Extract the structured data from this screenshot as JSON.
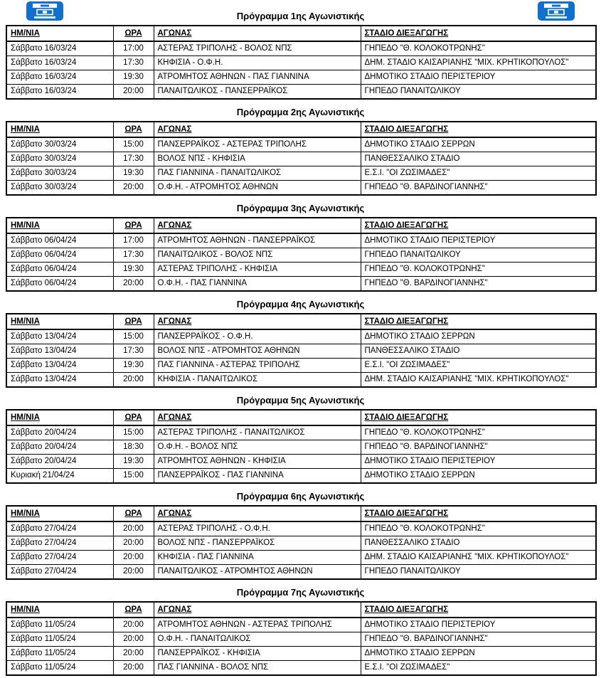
{
  "icons": {
    "logo": "league-logo"
  },
  "colors": {
    "logo_blue": "#1170c9",
    "border": "#000000",
    "text": "#000000",
    "background": "#ffffff"
  },
  "columns": [
    "ΗΜ/ΝΙΑ",
    "ΩΡΑ",
    "ΑΓΩΝΑΣ",
    "ΣΤΑΔΙΟ ΔΙΕΞΑΓΩΓΗΣ"
  ],
  "matchdays": [
    {
      "title": "Πρόγραμμα 1ης Αγωνιστικής",
      "rows": [
        [
          "Σάββατο 16/03/24",
          "17:00",
          "ΑΣΤΕΡΑΣ ΤΡΙΠΟΛΗΣ - ΒΟΛΟΣ ΝΠΣ",
          "ΓΗΠΕΔΟ \"Θ. ΚΟΛΟΚΟΤΡΩΝΗΣ\""
        ],
        [
          "Σάββατο 16/03/24",
          "17:30",
          "ΚΗΦΙΣΙΑ - Ο.Φ.Η.",
          "ΔΗΜ. ΣΤΑΔΙΟ ΚΑΙΣΑΡΙΑΝΗΣ \"ΜΙΧ. ΚΡΗΤΙΚΟΠΟΥΛΟΣ\""
        ],
        [
          "Σάββατο 16/03/24",
          "19:30",
          "ΑΤΡΟΜΗΤΟΣ ΑΘΗΝΩΝ - ΠΑΣ ΓΙΑΝΝΙΝΑ",
          "ΔΗΜΟΤΙΚΟ ΣΤΑΔΙΟ ΠΕΡΙΣΤΕΡΙΟΥ"
        ],
        [
          "Σάββατο 16/03/24",
          "20:00",
          "ΠΑΝΑΙΤΩΛΙΚΟΣ - ΠΑΝΣΕΡΡΑΪΚΟΣ",
          "ΓΗΠΕΔΟ ΠΑΝΑΙΤΩΛΙΚΟΥ"
        ]
      ]
    },
    {
      "title": "Πρόγραμμα 2ης Αγωνιστικής",
      "rows": [
        [
          "Σάββατο 30/03/24",
          "15:00",
          "ΠΑΝΣΕΡΡΑΪΚΟΣ - ΑΣΤΕΡΑΣ ΤΡΙΠΟΛΗΣ",
          "ΔΗΜΟΤΙΚΟ ΣΤΑΔΙΟ ΣΕΡΡΩΝ"
        ],
        [
          "Σάββατο 30/03/24",
          "17:30",
          "ΒΟΛΟΣ ΝΠΣ - ΚΗΦΙΣΙΑ",
          "ΠΑΝΘΕΣΣΑΛΙΚΟ ΣΤΑΔΙΟ"
        ],
        [
          "Σάββατο 30/03/24",
          "19:30",
          "ΠΑΣ ΓΙΑΝΝΙΝΑ - ΠΑΝΑΙΤΩΛΙΚΟΣ",
          "Ε.Σ.Ι. \"ΟΙ ΖΩΣΙΜΑΔΕΣ\""
        ],
        [
          "Σάββατο 30/03/24",
          "20:00",
          "Ο.Φ.Η. - ΑΤΡΟΜΗΤΟΣ ΑΘΗΝΩΝ",
          "ΓΗΠΕΔΟ \"Θ. ΒΑΡΔΙΝΟΓΙΑΝΝΗΣ\""
        ]
      ]
    },
    {
      "title": "Πρόγραμμα 3ης Αγωνιστικής",
      "rows": [
        [
          "Σάββατο 06/04/24",
          "17:00",
          "ΑΤΡΟΜΗΤΟΣ ΑΘΗΝΩΝ - ΠΑΝΣΕΡΡΑΪΚΟΣ",
          "ΔΗΜΟΤΙΚΟ ΣΤΑΔΙΟ ΠΕΡΙΣΤΕΡΙΟΥ"
        ],
        [
          "Σάββατο 06/04/24",
          "17:30",
          "ΠΑΝΑΙΤΩΛΙΚΟΣ - ΒΟΛΟΣ ΝΠΣ",
          "ΓΗΠΕΔΟ ΠΑΝΑΙΤΩΛΙΚΟΥ"
        ],
        [
          "Σάββατο 06/04/24",
          "19:30",
          "ΑΣΤΕΡΑΣ ΤΡΙΠΟΛΗΣ - ΚΗΦΙΣΙΑ",
          "ΓΗΠΕΔΟ \"Θ. ΚΟΛΟΚΟΤΡΩΝΗΣ\""
        ],
        [
          "Σάββατο 06/04/24",
          "20:00",
          "Ο.Φ.Η. - ΠΑΣ ΓΙΑΝΝΙΝΑ",
          "ΓΗΠΕΔΟ \"Θ. ΒΑΡΔΙΝΟΓΙΑΝΝΗΣ\""
        ]
      ]
    },
    {
      "title": "Πρόγραμμα 4ης Αγωνιστικής",
      "rows": [
        [
          "Σάββατο 13/04/24",
          "15:00",
          "ΠΑΝΣΕΡΡΑΪΚΟΣ - Ο.Φ.Η.",
          "ΔΗΜΟΤΙΚΟ ΣΤΑΔΙΟ ΣΕΡΡΩΝ"
        ],
        [
          "Σάββατο 13/04/24",
          "17:30",
          "ΒΟΛΟΣ ΝΠΣ - ΑΤΡΟΜΗΤΟΣ ΑΘΗΝΩΝ",
          "ΠΑΝΘΕΣΣΑΛΙΚΟ ΣΤΑΔΙΟ"
        ],
        [
          "Σάββατο 13/04/24",
          "19:30",
          "ΠΑΣ ΓΙΑΝΝΙΝΑ - ΑΣΤΕΡΑΣ ΤΡΙΠΟΛΗΣ",
          "Ε.Σ.Ι. \"ΟΙ ΖΩΣΙΜΑΔΕΣ\""
        ],
        [
          "Σάββατο 13/04/24",
          "20:00",
          "ΚΗΦΙΣΙΑ - ΠΑΝΑΙΤΩΛΙΚΟΣ",
          "ΔΗΜ. ΣΤΑΔΙΟ ΚΑΙΣΑΡΙΑΝΗΣ \"ΜΙΧ. ΚΡΗΤΙΚΟΠΟΥΛΟΣ\""
        ]
      ]
    },
    {
      "title": "Πρόγραμμα 5ης Αγωνιστικής",
      "rows": [
        [
          "Σάββατο 20/04/24",
          "15:00",
          "ΑΣΤΕΡΑΣ ΤΡΙΠΟΛΗΣ - ΠΑΝΑΙΤΩΛΙΚΟΣ",
          "ΓΗΠΕΔΟ \"Θ. ΚΟΛΟΚΟΤΡΩΝΗΣ\""
        ],
        [
          "Σάββατο 20/04/24",
          "18:30",
          "Ο.Φ.Η. - ΒΟΛΟΣ ΝΠΣ",
          "ΓΗΠΕΔΟ \"Θ. ΒΑΡΔΙΝΟΓΙΑΝΝΗΣ\""
        ],
        [
          "Σάββατο 20/04/24",
          "19:30",
          "ΑΤΡΟΜΗΤΟΣ ΑΘΗΝΩΝ - ΚΗΦΙΣΙΑ",
          "ΔΗΜΟΤΙΚΟ ΣΤΑΔΙΟ ΠΕΡΙΣΤΕΡΙΟΥ"
        ],
        [
          "Κυριακή 21/04/24",
          "15:00",
          "ΠΑΝΣΕΡΡΑΪΚΟΣ - ΠΑΣ ΓΙΑΝΝΙΝΑ",
          "ΔΗΜΟΤΙΚΟ ΣΤΑΔΙΟ ΣΕΡΡΩΝ"
        ]
      ]
    },
    {
      "title": "Πρόγραμμα 6ης Αγωνιστικής",
      "rows": [
        [
          "Σάββατο 27/04/24",
          "20:00",
          "ΑΣΤΕΡΑΣ ΤΡΙΠΟΛΗΣ - Ο.Φ.Η.",
          "ΓΗΠΕΔΟ \"Θ. ΚΟΛΟΚΟΤΡΩΝΗΣ\""
        ],
        [
          "Σάββατο 27/04/24",
          "20:00",
          "ΒΟΛΟΣ ΝΠΣ - ΠΑΝΣΕΡΡΑΪΚΟΣ",
          "ΠΑΝΘΕΣΣΑΛΙΚΟ ΣΤΑΔΙΟ"
        ],
        [
          "Σάββατο 27/04/24",
          "20:00",
          "ΚΗΦΙΣΙΑ - ΠΑΣ ΓΙΑΝΝΙΝΑ",
          "ΔΗΜ. ΣΤΑΔΙΟ ΚΑΙΣΑΡΙΑΝΗΣ \"ΜΙΧ. ΚΡΗΤΙΚΟΠΟΥΛΟΣ\""
        ],
        [
          "Σάββατο 27/04/24",
          "20:00",
          "ΠΑΝΑΙΤΩΛΙΚΟΣ - ΑΤΡΟΜΗΤΟΣ ΑΘΗΝΩΝ",
          "ΓΗΠΕΔΟ ΠΑΝΑΙΤΩΛΙΚΟΥ"
        ]
      ]
    },
    {
      "title": "Πρόγραμμα 7ης Αγωνιστικής",
      "rows": [
        [
          "Σάββατο 11/05/24",
          "20:00",
          "ΑΤΡΟΜΗΤΟΣ ΑΘΗΝΩΝ - ΑΣΤΕΡΑΣ ΤΡΙΠΟΛΗΣ",
          "ΔΗΜΟΤΙΚΟ ΣΤΑΔΙΟ ΠΕΡΙΣΤΕΡΙΟΥ"
        ],
        [
          "Σάββατο 11/05/24",
          "20:00",
          "Ο.Φ.Η. - ΠΑΝΑΙΤΩΛΙΚΟΣ",
          "ΓΗΠΕΔΟ \"Θ. ΒΑΡΔΙΝΟΓΙΑΝΝΗΣ\""
        ],
        [
          "Σάββατο 11/05/24",
          "20:00",
          "ΠΑΝΣΕΡΡΑΪΚΟΣ - ΚΗΦΙΣΙΑ",
          "ΔΗΜΟΤΙΚΟ ΣΤΑΔΙΟ ΣΕΡΡΩΝ"
        ],
        [
          "Σάββατο 11/05/24",
          "20:00",
          "ΠΑΣ ΓΙΑΝΝΙΝΑ - ΒΟΛΟΣ ΝΠΣ",
          "Ε.Σ.Ι. \"ΟΙ ΖΩΣΙΜΑΔΕΣ\""
        ]
      ]
    }
  ]
}
